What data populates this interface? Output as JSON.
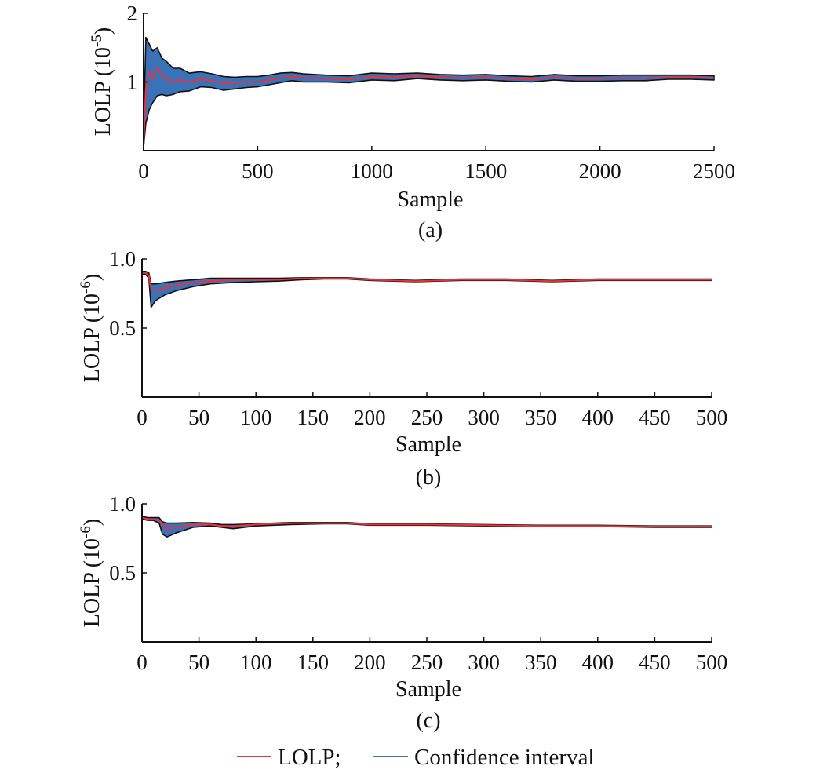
{
  "chart_data": [
    {
      "panel": "(a)",
      "type": "line",
      "xlabel": "Sample",
      "ylabel": "LOLP (10",
      "ylabel_exp": "-5",
      "ylabel_close": ")",
      "xlim": [
        0,
        2500
      ],
      "ylim": [
        0,
        2
      ],
      "xticks": [
        0,
        500,
        1000,
        1500,
        2000,
        2500
      ],
      "xtick_labels": [
        "0",
        "500",
        "1000",
        "1500",
        "2000",
        "2500"
      ],
      "yticks": [
        1,
        2
      ],
      "ytick_labels": [
        "1",
        "2"
      ],
      "series": [
        {
          "name": "LOLP",
          "color": "#e8323c",
          "x": [
            0,
            10,
            25,
            40,
            60,
            80,
            100,
            130,
            160,
            200,
            250,
            300,
            350,
            400,
            450,
            500,
            550,
            600,
            650,
            700,
            800,
            900,
            1000,
            1100,
            1200,
            1300,
            1400,
            1500,
            1600,
            1700,
            1800,
            1900,
            2000,
            2100,
            2200,
            2300,
            2400,
            2500
          ],
          "y": [
            0.1,
            0.9,
            1.15,
            1.05,
            1.2,
            1.1,
            1.05,
            1.0,
            1.03,
            1.0,
            1.04,
            1.02,
            0.98,
            0.99,
            1.0,
            1.0,
            1.03,
            1.06,
            1.08,
            1.06,
            1.05,
            1.04,
            1.08,
            1.07,
            1.09,
            1.07,
            1.06,
            1.07,
            1.05,
            1.04,
            1.07,
            1.05,
            1.05,
            1.06,
            1.06,
            1.07,
            1.07,
            1.06
          ]
        },
        {
          "name": "Confidence interval",
          "color": "#3a72b8",
          "x": [
            0,
            10,
            25,
            40,
            60,
            80,
            100,
            130,
            160,
            200,
            250,
            300,
            350,
            400,
            450,
            500,
            550,
            600,
            650,
            700,
            800,
            900,
            1000,
            1100,
            1200,
            1300,
            1400,
            1500,
            1600,
            1700,
            1800,
            1900,
            2000,
            2100,
            2200,
            2300,
            2400,
            2500
          ],
          "upper": [
            0.3,
            1.65,
            1.55,
            1.45,
            1.5,
            1.35,
            1.3,
            1.2,
            1.2,
            1.13,
            1.15,
            1.12,
            1.08,
            1.07,
            1.08,
            1.08,
            1.1,
            1.13,
            1.14,
            1.12,
            1.1,
            1.09,
            1.13,
            1.12,
            1.13,
            1.11,
            1.1,
            1.11,
            1.09,
            1.08,
            1.11,
            1.09,
            1.09,
            1.1,
            1.1,
            1.1,
            1.1,
            1.09
          ],
          "lower": [
            0.05,
            0.4,
            0.6,
            0.7,
            0.8,
            0.82,
            0.8,
            0.82,
            0.86,
            0.87,
            0.93,
            0.92,
            0.88,
            0.9,
            0.92,
            0.93,
            0.96,
            0.99,
            1.02,
            1.0,
            1.0,
            0.99,
            1.03,
            1.02,
            1.05,
            1.03,
            1.02,
            1.03,
            1.01,
            1.0,
            1.03,
            1.01,
            1.01,
            1.02,
            1.02,
            1.04,
            1.04,
            1.03
          ]
        }
      ]
    },
    {
      "panel": "(b)",
      "type": "line",
      "xlabel": "Sample",
      "ylabel": "LOLP (10",
      "ylabel_exp": "-6",
      "ylabel_close": ")",
      "xlim": [
        0,
        500
      ],
      "ylim": [
        0,
        1.0
      ],
      "xticks": [
        0,
        50,
        100,
        150,
        200,
        250,
        300,
        350,
        400,
        450,
        500
      ],
      "xtick_labels": [
        "0",
        "50",
        "100",
        "150",
        "200",
        "250",
        "300",
        "350",
        "400",
        "450",
        "500"
      ],
      "yticks": [
        0.5,
        1.0
      ],
      "ytick_labels": [
        "0.5",
        "1.0"
      ],
      "series": [
        {
          "name": "LOLP",
          "color": "#e8323c",
          "x": [
            0,
            3,
            6,
            8,
            12,
            20,
            30,
            45,
            60,
            80,
            100,
            120,
            140,
            160,
            180,
            200,
            240,
            280,
            320,
            360,
            400,
            450,
            500
          ],
          "y": [
            0.9,
            0.9,
            0.88,
            0.78,
            0.77,
            0.79,
            0.81,
            0.83,
            0.84,
            0.85,
            0.85,
            0.85,
            0.86,
            0.86,
            0.86,
            0.85,
            0.84,
            0.85,
            0.85,
            0.84,
            0.85,
            0.85,
            0.85
          ]
        },
        {
          "name": "Confidence interval",
          "color": "#3a72b8",
          "x": [
            0,
            3,
            6,
            8,
            12,
            20,
            30,
            45,
            60,
            80,
            100,
            120,
            140,
            160,
            180,
            200,
            240,
            280,
            320,
            360,
            400,
            450,
            500
          ],
          "upper": [
            0.91,
            0.91,
            0.9,
            0.82,
            0.82,
            0.83,
            0.84,
            0.85,
            0.86,
            0.86,
            0.86,
            0.86,
            0.865,
            0.865,
            0.865,
            0.855,
            0.845,
            0.855,
            0.855,
            0.845,
            0.855,
            0.855,
            0.855
          ],
          "lower": [
            0.89,
            0.89,
            0.86,
            0.65,
            0.7,
            0.74,
            0.77,
            0.8,
            0.82,
            0.83,
            0.835,
            0.84,
            0.85,
            0.855,
            0.855,
            0.845,
            0.835,
            0.845,
            0.845,
            0.835,
            0.845,
            0.845,
            0.845
          ]
        }
      ]
    },
    {
      "panel": "(c)",
      "type": "line",
      "xlabel": "Sample",
      "ylabel": "LOLP (10",
      "ylabel_exp": "-6",
      "ylabel_close": ")",
      "xlim": [
        0,
        500
      ],
      "ylim": [
        0,
        1.0
      ],
      "xticks": [
        0,
        50,
        100,
        150,
        200,
        250,
        300,
        350,
        400,
        450,
        500
      ],
      "xtick_labels": [
        "0",
        "50",
        "100",
        "150",
        "200",
        "250",
        "300",
        "350",
        "400",
        "450",
        "500"
      ],
      "yticks": [
        0.5,
        1.0
      ],
      "ytick_labels": [
        "0.5",
        "1.0"
      ],
      "series": [
        {
          "name": "LOLP",
          "color": "#e8323c",
          "x": [
            0,
            5,
            10,
            15,
            18,
            22,
            30,
            45,
            60,
            70,
            80,
            100,
            130,
            160,
            180,
            200,
            250,
            300,
            350,
            400,
            450,
            500
          ],
          "y": [
            0.9,
            0.89,
            0.89,
            0.88,
            0.85,
            0.82,
            0.83,
            0.85,
            0.85,
            0.84,
            0.84,
            0.85,
            0.86,
            0.86,
            0.86,
            0.85,
            0.85,
            0.845,
            0.84,
            0.84,
            0.835,
            0.835
          ]
        },
        {
          "name": "Confidence interval",
          "color": "#3a72b8",
          "x": [
            0,
            5,
            10,
            15,
            18,
            22,
            30,
            45,
            60,
            70,
            80,
            100,
            130,
            160,
            180,
            200,
            250,
            300,
            350,
            400,
            450,
            500
          ],
          "upper": [
            0.91,
            0.9,
            0.9,
            0.9,
            0.87,
            0.86,
            0.86,
            0.865,
            0.86,
            0.85,
            0.85,
            0.855,
            0.865,
            0.865,
            0.865,
            0.855,
            0.855,
            0.85,
            0.845,
            0.845,
            0.84,
            0.84
          ],
          "lower": [
            0.89,
            0.88,
            0.88,
            0.86,
            0.78,
            0.76,
            0.79,
            0.83,
            0.84,
            0.83,
            0.82,
            0.84,
            0.85,
            0.855,
            0.855,
            0.845,
            0.845,
            0.84,
            0.835,
            0.835,
            0.83,
            0.83
          ]
        }
      ]
    }
  ],
  "legend": {
    "items": [
      {
        "label": "LOLP;",
        "color": "#e8323c"
      },
      {
        "label": "Confidence interval",
        "color": "#3a72b8"
      }
    ]
  }
}
